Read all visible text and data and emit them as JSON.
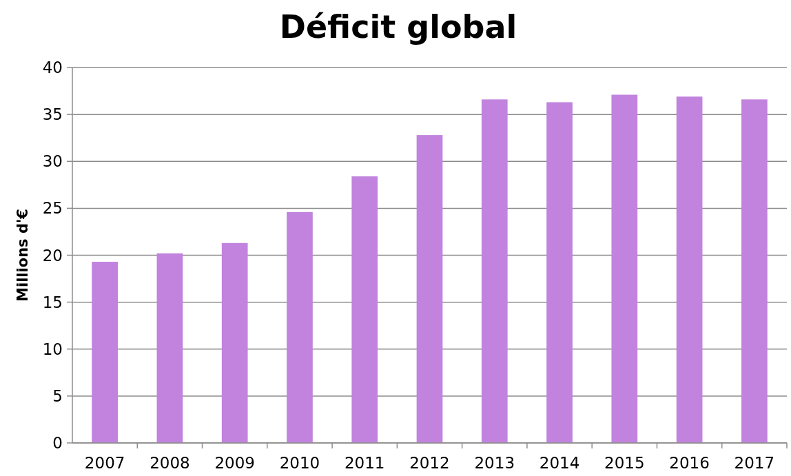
{
  "chart_data": {
    "type": "bar",
    "title": "Déficit global",
    "ylabel": "Millions d'€",
    "categories": [
      "2007",
      "2008",
      "2009",
      "2010",
      "2011",
      "2012",
      "2013",
      "2014",
      "2015",
      "2016",
      "2017"
    ],
    "values": [
      19.3,
      20.2,
      21.3,
      24.6,
      28.4,
      32.8,
      36.6,
      36.3,
      37.1,
      36.9,
      36.6
    ],
    "color": "#c183dd",
    "ylim": [
      0,
      40
    ],
    "yticks": [
      0,
      5,
      10,
      15,
      20,
      25,
      30,
      35,
      40
    ],
    "grid": "y"
  }
}
